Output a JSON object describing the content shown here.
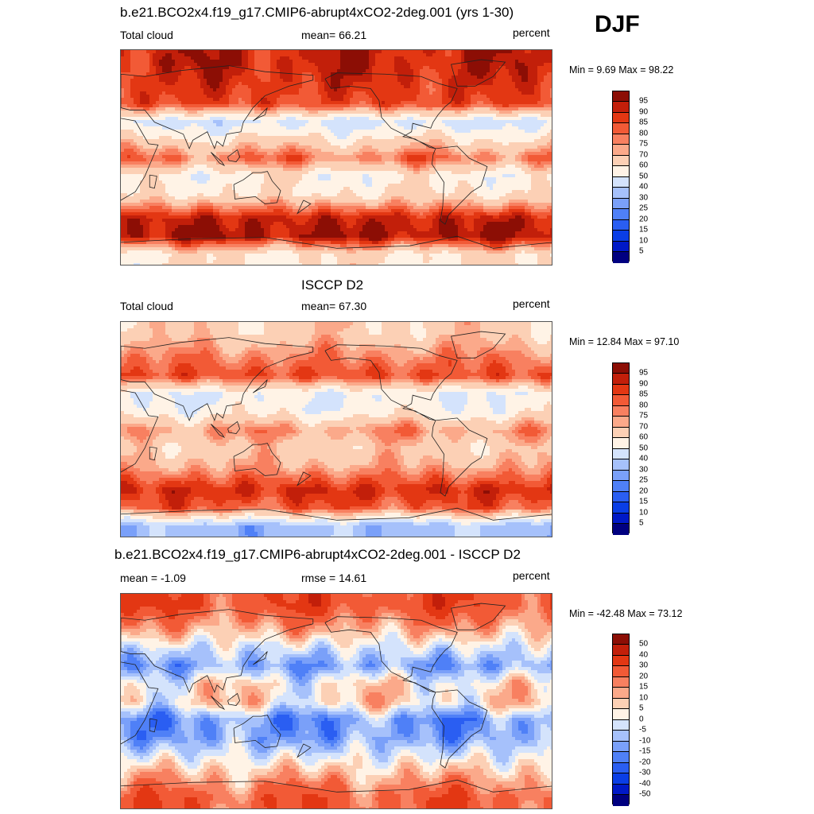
{
  "season": "DJF",
  "colors": {
    "seq": [
      "#000080",
      "#0019c7",
      "#0a3ee6",
      "#2a5ef2",
      "#4f80f7",
      "#7aa0f9",
      "#a6c1fb",
      "#d4e3fc",
      "#fff3e6",
      "#fcd0b5",
      "#fba98a",
      "#f88060",
      "#f25a36",
      "#e33713",
      "#c21f0a",
      "#8c0e05"
    ],
    "diff": [
      "#000080",
      "#0019c7",
      "#0a3ee6",
      "#2a5ef2",
      "#4f80f7",
      "#7aa0f9",
      "#a6c1fb",
      "#d4e3fc",
      "#fff3e6",
      "#fcd0b5",
      "#fba98a",
      "#f88060",
      "#f25a36",
      "#e33713",
      "#c21f0a",
      "#8c0e05"
    ],
    "coast": "#222222"
  },
  "panels": [
    {
      "title": "b.e21.BCO2x4.f19_g17.CMIP6-abrupt4xCO2-2deg.001 (yrs 1-30)",
      "left_label": "Total cloud",
      "center_label": "mean=  66.21",
      "right_label": "percent",
      "minmax": "Min =   9.69 Max =  98.22",
      "colorbar_labels": [
        "95",
        "90",
        "85",
        "80",
        "75",
        "70",
        "60",
        "50",
        "40",
        "30",
        "25",
        "20",
        "15",
        "10",
        "5"
      ]
    },
    {
      "title": "ISCCP D2",
      "left_label": "Total cloud",
      "center_label": "mean=  67.30",
      "right_label": "percent",
      "minmax": "Min =  12.84 Max =  97.10",
      "colorbar_labels": [
        "95",
        "90",
        "85",
        "80",
        "75",
        "70",
        "60",
        "50",
        "40",
        "30",
        "25",
        "20",
        "15",
        "10",
        "5"
      ]
    },
    {
      "title": "b.e21.BCO2x4.f19_g17.CMIP6-abrupt4xCO2-2deg.001 - ISCCP D2",
      "left_label": "mean =  -1.09",
      "center_label": "rmse =  14.61",
      "right_label": "percent",
      "minmax": "Min = -42.48 Max =  73.12",
      "colorbar_labels": [
        "50",
        "40",
        "30",
        "20",
        "15",
        "10",
        "5",
        "0",
        "-5",
        "-10",
        "-15",
        "-20",
        "-30",
        "-40",
        "-50"
      ]
    }
  ],
  "chart_data": [
    {
      "type": "heatmap",
      "title": "b.e21.BCO2x4.f19_g17.CMIP6-abrupt4xCO2-2deg.001 (yrs 1-30)",
      "variable": "Total cloud",
      "units": "percent",
      "mean": 66.21,
      "min": 9.69,
      "max": 98.22,
      "contour_levels": [
        5,
        10,
        15,
        20,
        25,
        30,
        40,
        50,
        60,
        70,
        75,
        80,
        85,
        90,
        95
      ],
      "zonal_bands": [
        {
          "lat": 80,
          "value": 92
        },
        {
          "lat": 60,
          "value": 88
        },
        {
          "lat": 45,
          "value": 85
        },
        {
          "lat": 30,
          "value": 45
        },
        {
          "lat": 15,
          "value": 62
        },
        {
          "lat": 0,
          "value": 80
        },
        {
          "lat": -15,
          "value": 55
        },
        {
          "lat": -30,
          "value": 60
        },
        {
          "lat": -50,
          "value": 92
        },
        {
          "lat": -65,
          "value": 95
        },
        {
          "lat": -80,
          "value": 60
        }
      ]
    },
    {
      "type": "heatmap",
      "title": "ISCCP D2",
      "variable": "Total cloud",
      "units": "percent",
      "mean": 67.3,
      "min": 12.84,
      "max": 97.1,
      "contour_levels": [
        5,
        10,
        15,
        20,
        25,
        30,
        40,
        50,
        60,
        70,
        75,
        80,
        85,
        90,
        95
      ],
      "zonal_bands": [
        {
          "lat": 80,
          "value": 65
        },
        {
          "lat": 60,
          "value": 78
        },
        {
          "lat": 45,
          "value": 85
        },
        {
          "lat": 30,
          "value": 50
        },
        {
          "lat": 15,
          "value": 55
        },
        {
          "lat": 0,
          "value": 75
        },
        {
          "lat": -15,
          "value": 65
        },
        {
          "lat": -30,
          "value": 72
        },
        {
          "lat": -50,
          "value": 90
        },
        {
          "lat": -65,
          "value": 82
        },
        {
          "lat": -80,
          "value": 35
        }
      ]
    },
    {
      "type": "heatmap",
      "title": "b.e21.BCO2x4.f19_g17.CMIP6-abrupt4xCO2-2deg.001 - ISCCP D2",
      "variable": "Total cloud difference",
      "units": "percent",
      "mean": -1.09,
      "rmse": 14.61,
      "min": -42.48,
      "max": 73.12,
      "contour_levels": [
        -50,
        -40,
        -30,
        -20,
        -15,
        -10,
        -5,
        0,
        5,
        10,
        15,
        20,
        30,
        40,
        50
      ],
      "zonal_bands": [
        {
          "lat": 80,
          "value": 28
        },
        {
          "lat": 60,
          "value": 12
        },
        {
          "lat": 45,
          "value": -2
        },
        {
          "lat": 30,
          "value": -12
        },
        {
          "lat": 15,
          "value": 4
        },
        {
          "lat": 0,
          "value": 6
        },
        {
          "lat": -15,
          "value": -14
        },
        {
          "lat": -30,
          "value": -12
        },
        {
          "lat": -50,
          "value": 3
        },
        {
          "lat": -65,
          "value": 14
        },
        {
          "lat": -80,
          "value": 25
        }
      ]
    }
  ]
}
